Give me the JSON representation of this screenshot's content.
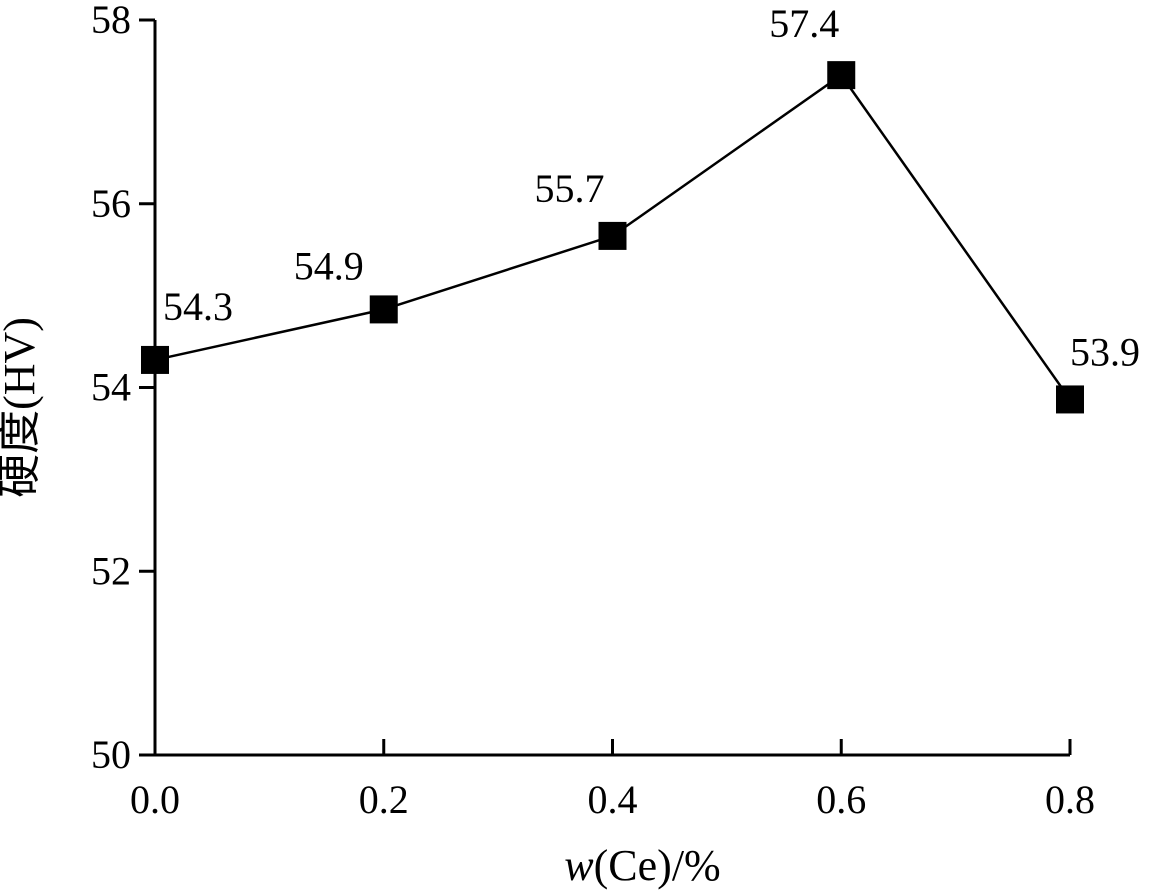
{
  "chart_data": {
    "type": "line",
    "title": "",
    "xlabel": "w(Ce)/%",
    "xlabel_parts": {
      "var": "w",
      "rest": "(Ce)/%"
    },
    "ylabel": "硬度(HV)",
    "x": [
      0.0,
      0.2,
      0.4,
      0.6,
      0.8
    ],
    "xticks": [
      "0.0",
      "0.2",
      "0.4",
      "0.6",
      "0.8"
    ],
    "yticks": [
      "50",
      "52",
      "54",
      "56",
      "58"
    ],
    "xlim": [
      0.0,
      0.8
    ],
    "ylim": [
      50,
      58
    ],
    "grid": false,
    "series": [
      {
        "values": [
          54.3,
          54.85,
          55.65,
          57.4,
          53.87
        ],
        "labels": [
          "54.3",
          "54.9",
          "55.7",
          "57.4",
          "53.9"
        ],
        "marker": "square",
        "color": "#000000"
      }
    ]
  }
}
